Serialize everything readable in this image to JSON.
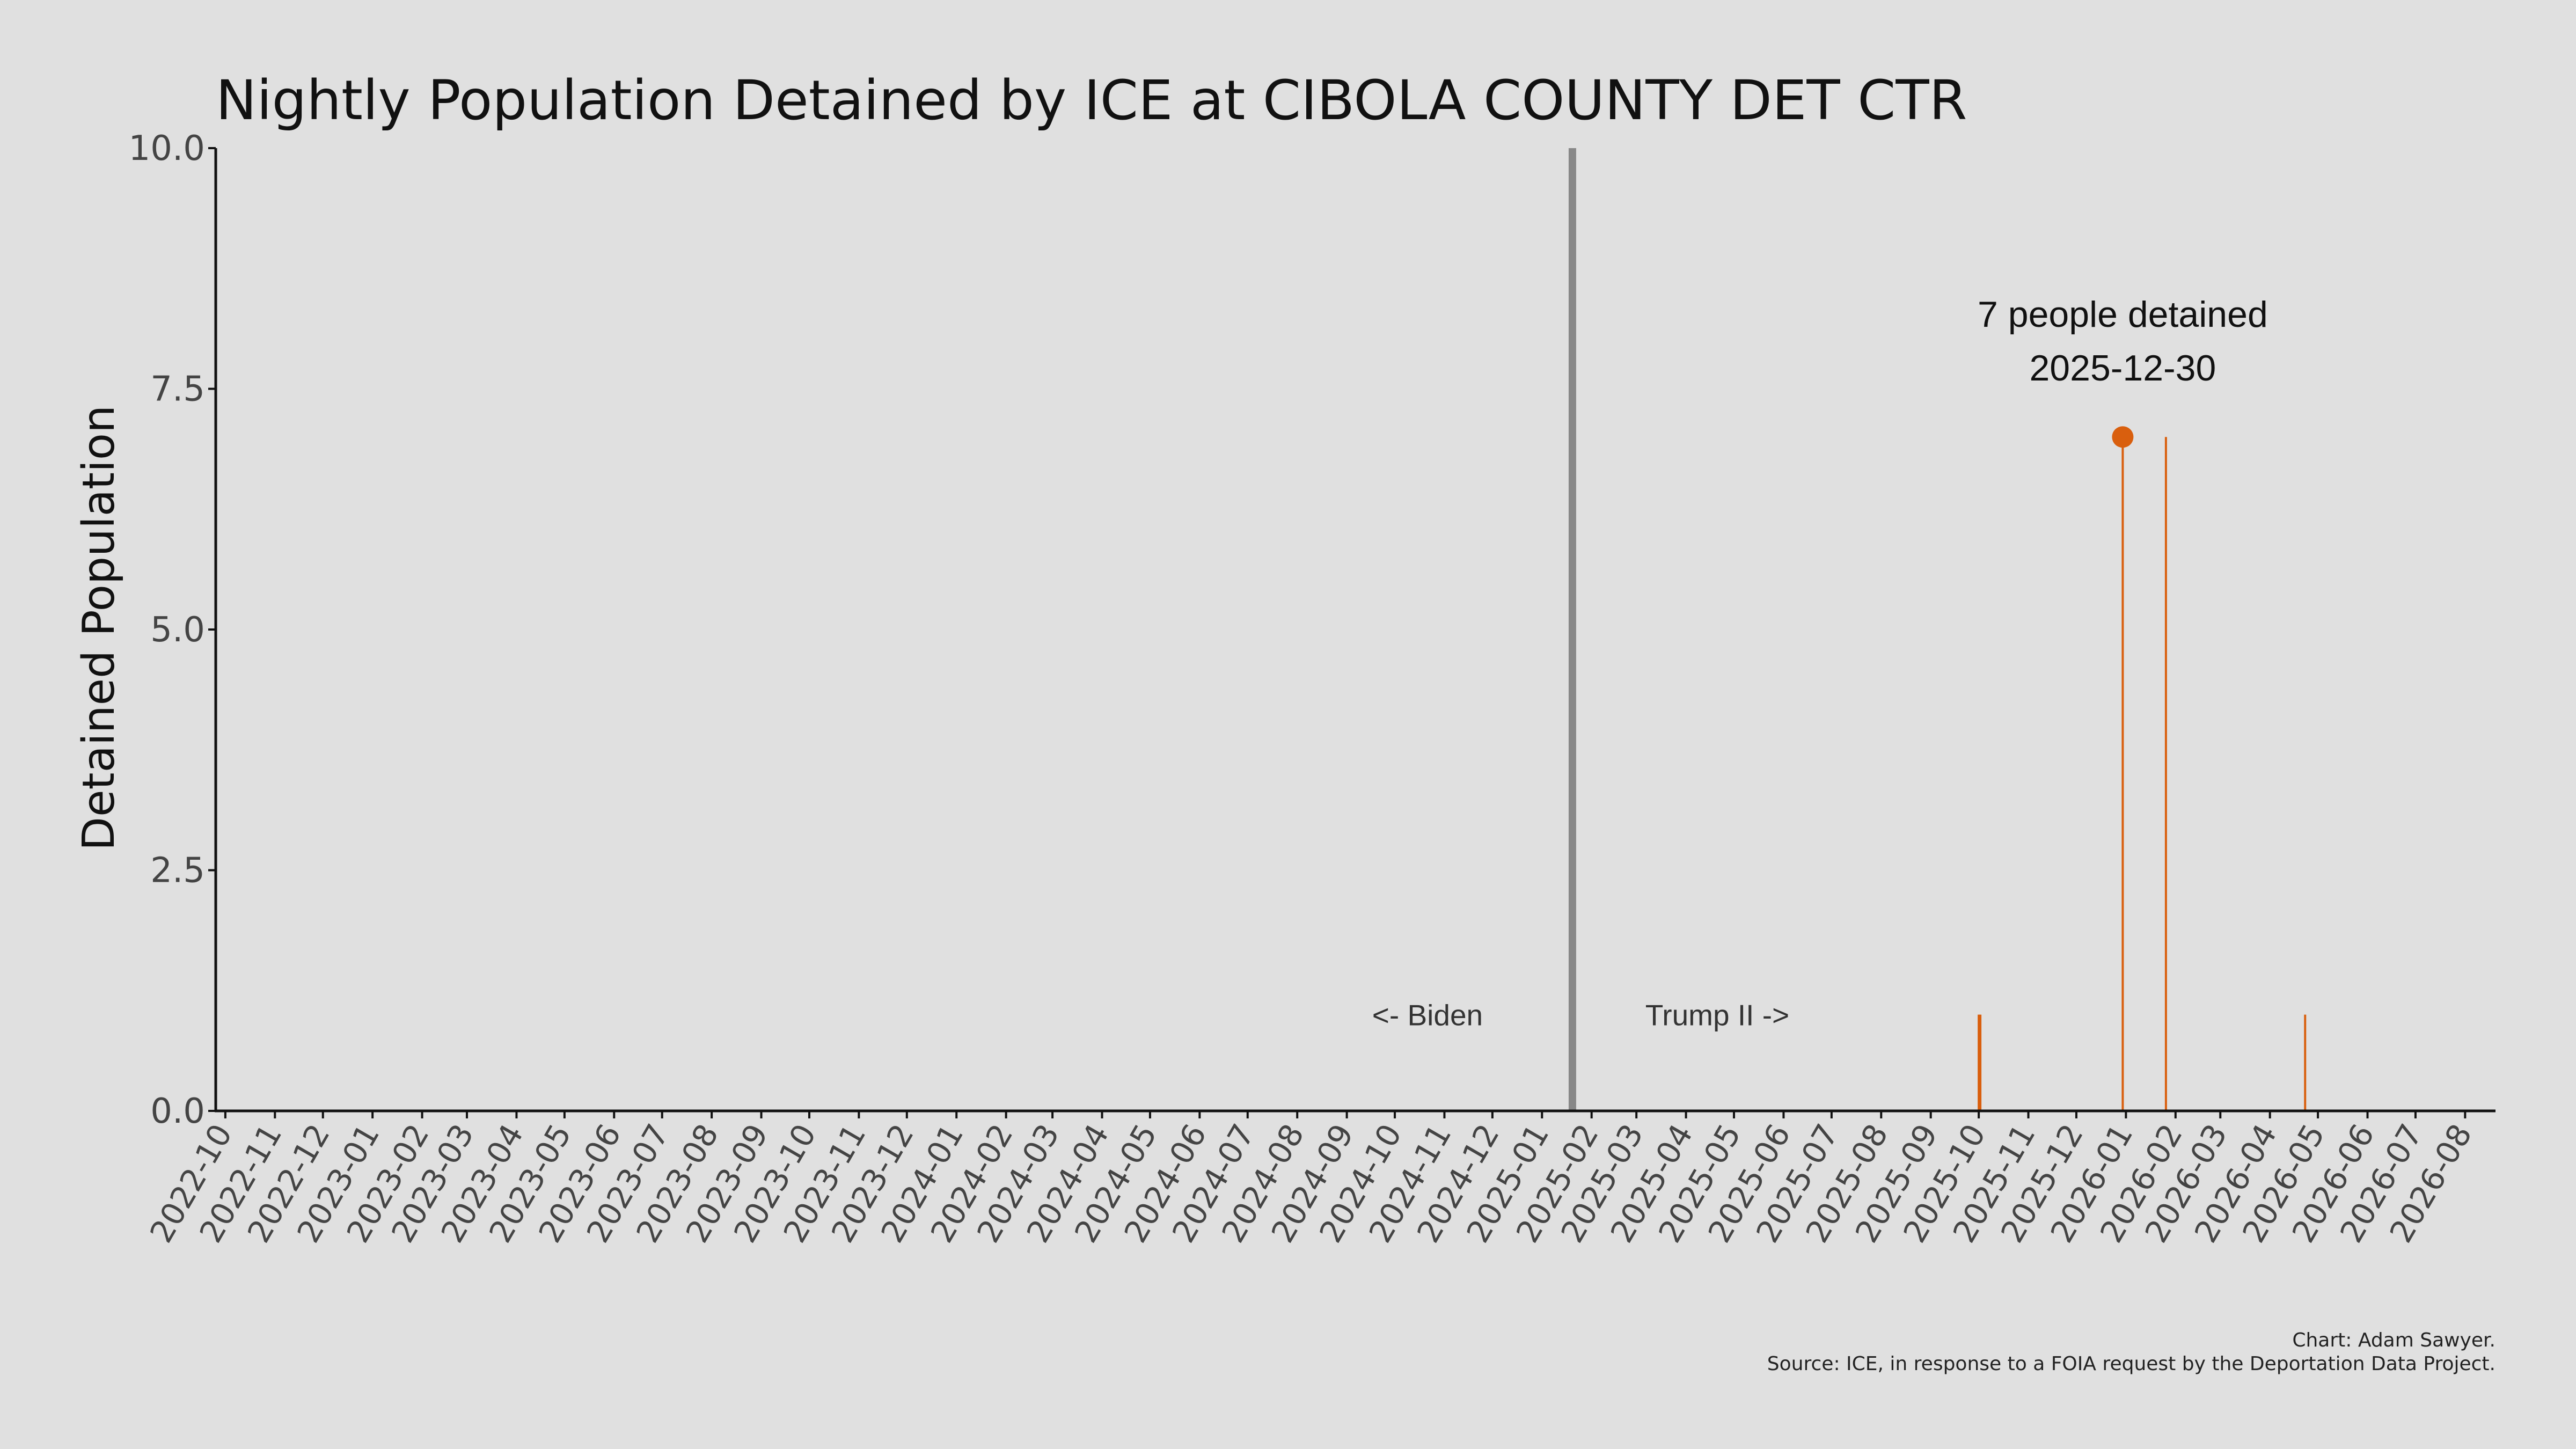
{
  "chart_data": {
    "type": "bar",
    "title": "Nightly Population Detained by ICE at CIBOLA COUNTY DET CTR",
    "ylabel": "Detained Population",
    "xlabel": "",
    "ylim": [
      0,
      10
    ],
    "xlim": [
      "2022-09-25",
      "2026-08-20"
    ],
    "yticks": [
      "0.0",
      "2.5",
      "5.0",
      "7.5",
      "10.0"
    ],
    "xticks": [
      "2022-10",
      "2022-11",
      "2022-12",
      "2023-01",
      "2023-02",
      "2023-03",
      "2023-04",
      "2023-05",
      "2023-06",
      "2023-07",
      "2023-08",
      "2023-09",
      "2023-10",
      "2023-11",
      "2023-12",
      "2024-01",
      "2024-02",
      "2024-03",
      "2024-04",
      "2024-05",
      "2024-06",
      "2024-07",
      "2024-08",
      "2024-09",
      "2024-10",
      "2024-11",
      "2024-12",
      "2025-01",
      "2025-02",
      "2025-03",
      "2025-04",
      "2025-05",
      "2025-06",
      "2025-07",
      "2025-08",
      "2025-09",
      "2025-10",
      "2025-11",
      "2025-12",
      "2026-01",
      "2026-02",
      "2026-03",
      "2026-04",
      "2026-05",
      "2026-06",
      "2026-07",
      "2026-08"
    ],
    "series": [
      {
        "color": "#d95f0e",
        "points": [
          {
            "date": "2025-10-01",
            "value": 1
          },
          {
            "date": "2025-10-02",
            "value": 1
          },
          {
            "date": "2025-12-30",
            "value": 7
          },
          {
            "date": "2026-01-26",
            "value": 7
          },
          {
            "date": "2026-04-23",
            "value": 1
          }
        ]
      }
    ],
    "divider": {
      "date": "2025-01-20",
      "color": "#888888"
    },
    "era_labels": {
      "left": "<- Biden",
      "right": "Trump II ->"
    },
    "annotation": {
      "line1": "7 people detained",
      "line2": "2025-12-30",
      "date": "2025-12-30",
      "value": 7
    },
    "grid": false,
    "legend": "none"
  },
  "credits": {
    "line1": "Chart: Adam Sawyer.",
    "line2": "Source: ICE, in response to a FOIA request by the Deportation Data Project."
  }
}
